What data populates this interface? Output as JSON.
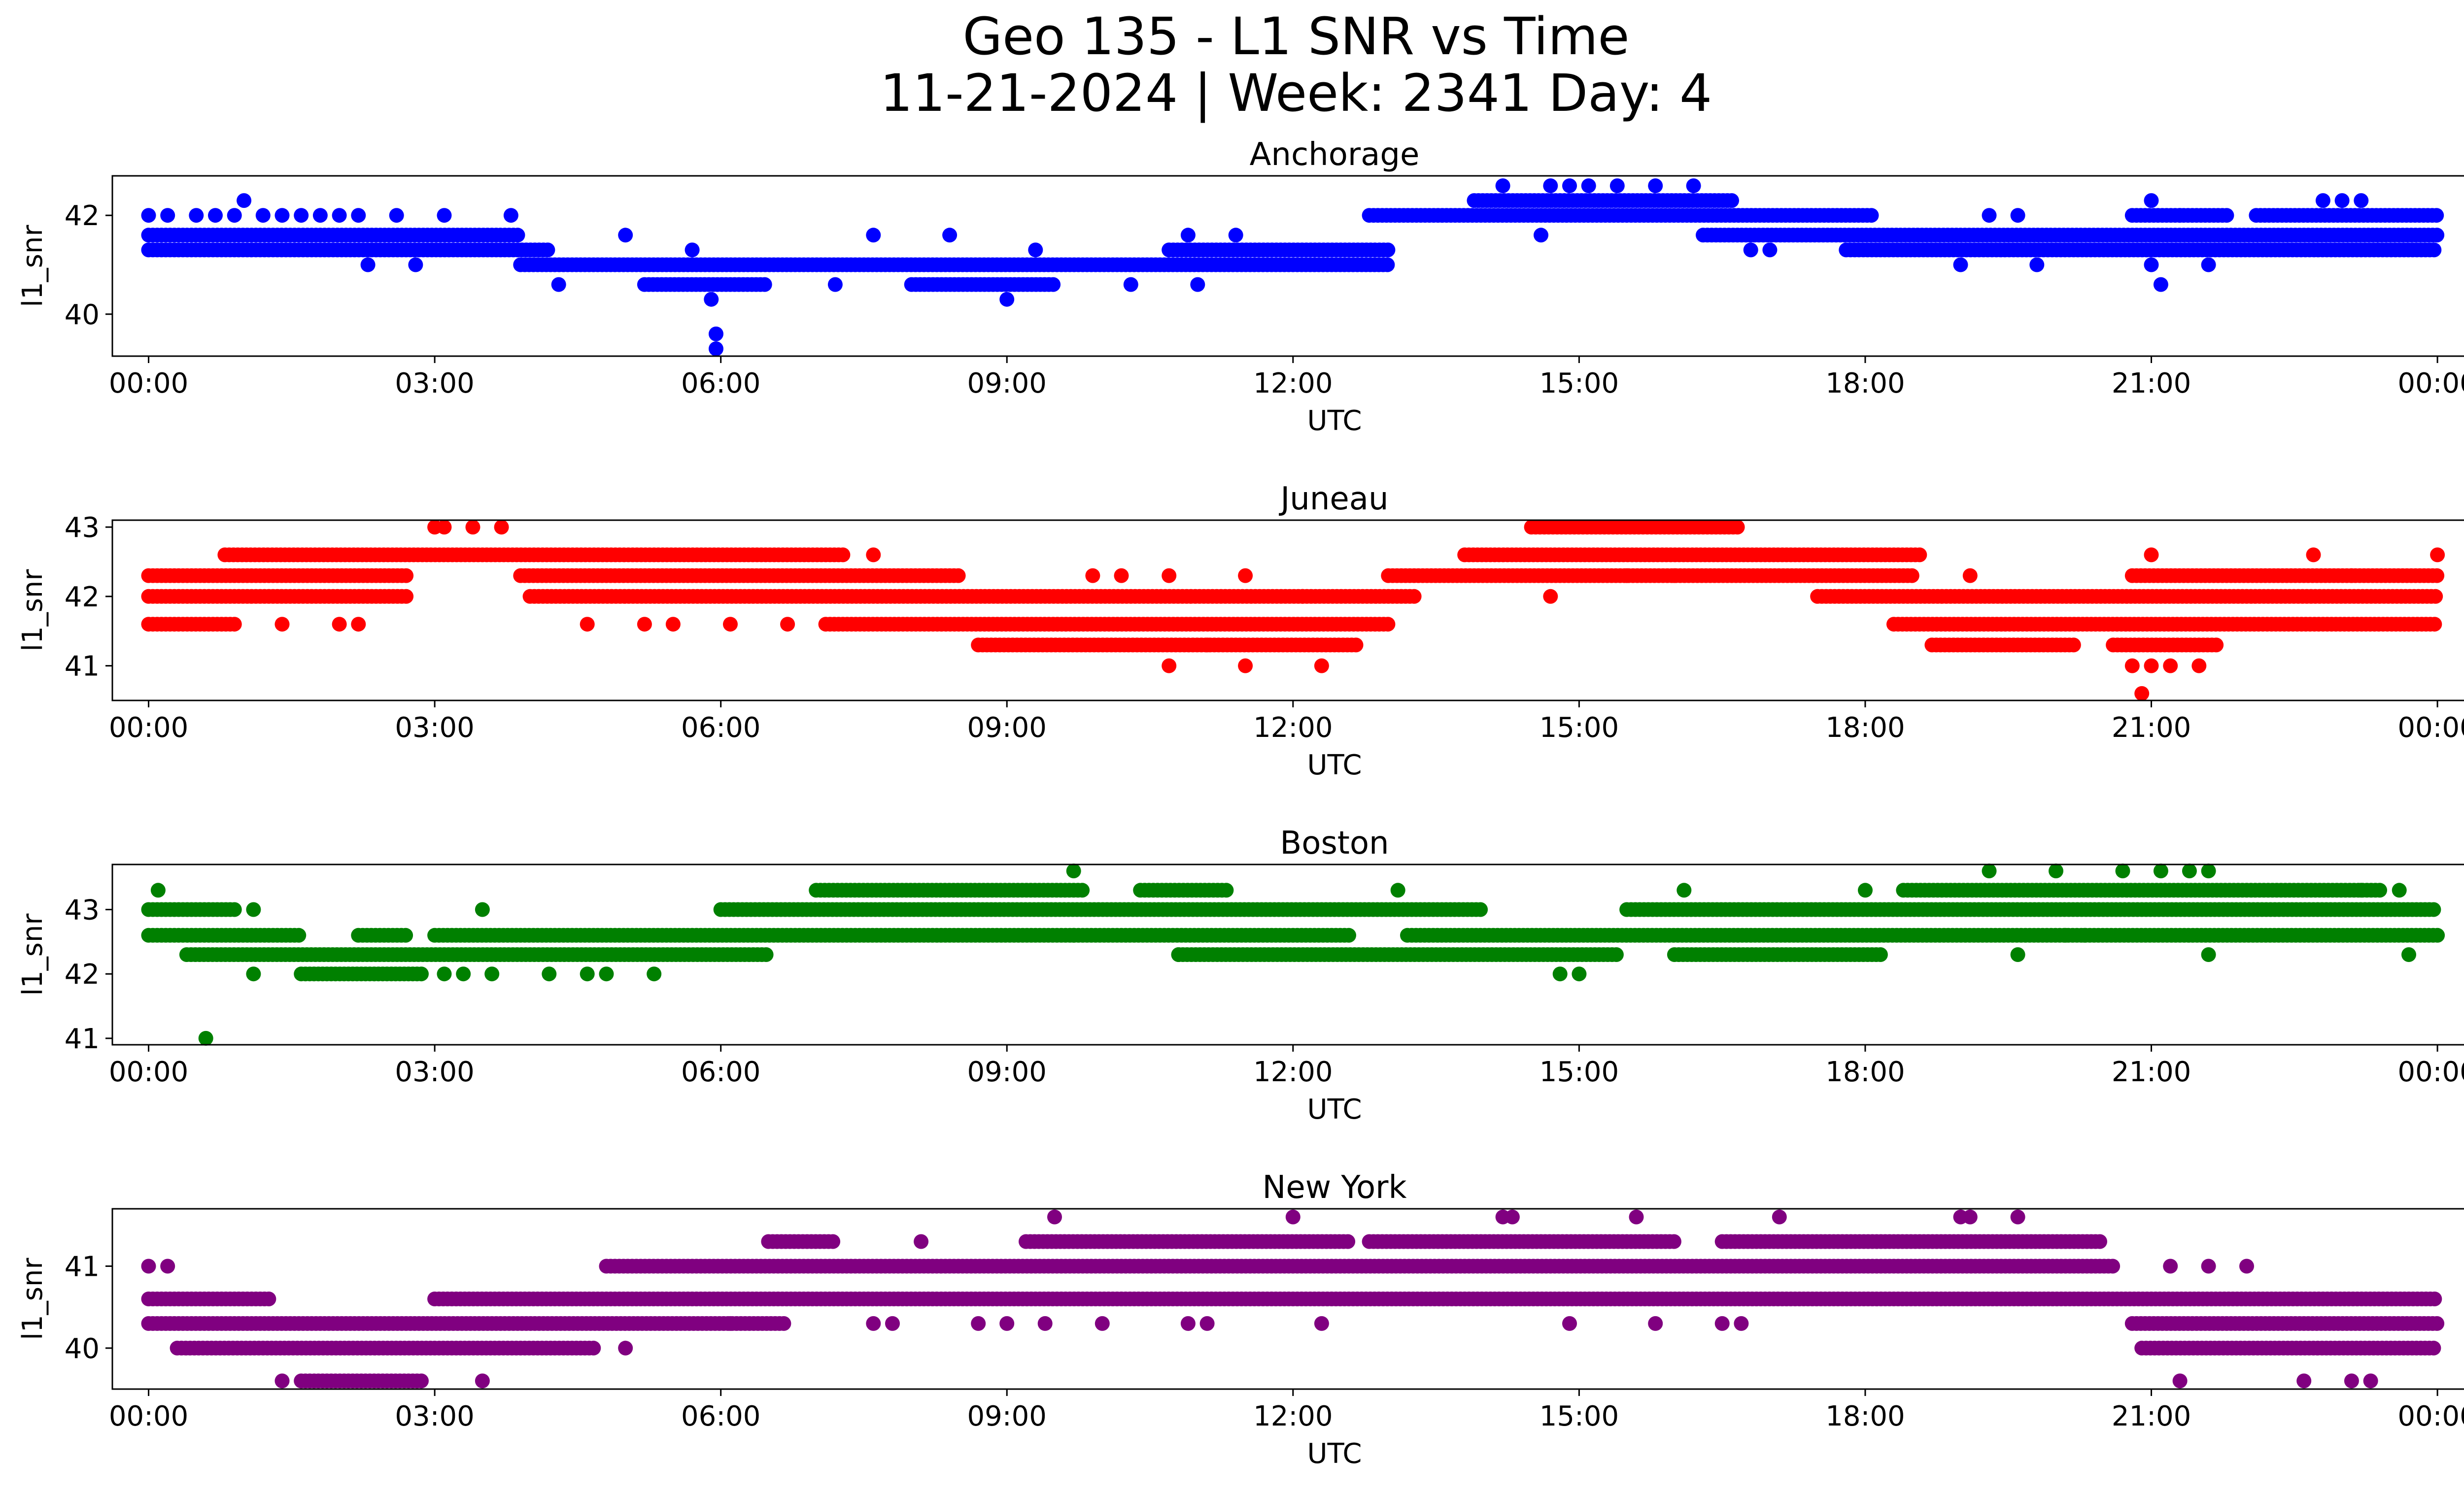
{
  "figure": {
    "title_line1": "Geo 135 - L1 SNR vs Time",
    "title_line2": "11-21-2024 | Week: 2341 Day: 4",
    "background": "#ffffff"
  },
  "chart_data": [
    {
      "type": "scatter",
      "title": "Anchorage",
      "xlabel": "UTC",
      "ylabel": "l1_snr",
      "color": "#0000ff",
      "xlim": [
        -0.38,
        25.25
      ],
      "ylim": [
        39.15,
        42.8
      ],
      "xticks": [
        0,
        3,
        6,
        9,
        12,
        15,
        18,
        21,
        24
      ],
      "xtick_labels": [
        "00:00",
        "03:00",
        "06:00",
        "09:00",
        "12:00",
        "15:00",
        "18:00",
        "21:00",
        "00:00"
      ],
      "yticks": [
        40,
        42
      ],
      "ytick_labels": [
        "40",
        "42"
      ],
      "bands": [
        {
          "y": 41.6,
          "x": [
            [
              0.0,
              3.9
            ],
            [
              16.3,
              24.0
            ]
          ]
        },
        {
          "y": 41.3,
          "x": [
            [
              0.0,
              4.2
            ],
            [
              10.7,
              13.0
            ],
            [
              17.8,
              24.0
            ]
          ]
        },
        {
          "y": 42.0,
          "x": [
            [
              12.8,
              18.1
            ],
            [
              20.8,
              21.8
            ],
            [
              22.1,
              24.0
            ]
          ]
        },
        {
          "y": 41.0,
          "x": [
            [
              3.9,
              13.0
            ]
          ]
        },
        {
          "y": 40.6,
          "x": [
            [
              5.2,
              6.5
            ],
            [
              8.0,
              9.5
            ]
          ]
        },
        {
          "y": 42.3,
          "x": [
            [
              13.9,
              16.6
            ]
          ]
        }
      ],
      "points": [
        {
          "x": 0.0,
          "y": 42.0
        },
        {
          "x": 0.2,
          "y": 42.0
        },
        {
          "x": 0.5,
          "y": 42.0
        },
        {
          "x": 0.7,
          "y": 42.0
        },
        {
          "x": 0.9,
          "y": 42.0
        },
        {
          "x": 1.0,
          "y": 42.3
        },
        {
          "x": 1.2,
          "y": 42.0
        },
        {
          "x": 1.4,
          "y": 42.0
        },
        {
          "x": 1.6,
          "y": 42.0
        },
        {
          "x": 1.8,
          "y": 42.0
        },
        {
          "x": 2.0,
          "y": 42.0
        },
        {
          "x": 2.2,
          "y": 42.0
        },
        {
          "x": 2.6,
          "y": 42.0
        },
        {
          "x": 2.3,
          "y": 41.0
        },
        {
          "x": 2.8,
          "y": 41.0
        },
        {
          "x": 3.1,
          "y": 42.0
        },
        {
          "x": 3.8,
          "y": 42.0
        },
        {
          "x": 4.3,
          "y": 40.6
        },
        {
          "x": 5.0,
          "y": 41.6
        },
        {
          "x": 5.7,
          "y": 41.3
        },
        {
          "x": 5.9,
          "y": 40.3
        },
        {
          "x": 5.95,
          "y": 39.6
        },
        {
          "x": 5.95,
          "y": 39.3
        },
        {
          "x": 7.2,
          "y": 40.6
        },
        {
          "x": 7.6,
          "y": 41.6
        },
        {
          "x": 8.4,
          "y": 41.6
        },
        {
          "x": 9.0,
          "y": 40.3
        },
        {
          "x": 9.3,
          "y": 41.3
        },
        {
          "x": 10.3,
          "y": 40.6
        },
        {
          "x": 10.9,
          "y": 41.6
        },
        {
          "x": 11.0,
          "y": 40.6
        },
        {
          "x": 11.4,
          "y": 41.6
        },
        {
          "x": 14.2,
          "y": 42.6
        },
        {
          "x": 14.7,
          "y": 42.6
        },
        {
          "x": 14.9,
          "y": 42.6
        },
        {
          "x": 15.1,
          "y": 42.6
        },
        {
          "x": 15.4,
          "y": 42.6
        },
        {
          "x": 15.8,
          "y": 42.6
        },
        {
          "x": 16.2,
          "y": 42.6
        },
        {
          "x": 14.6,
          "y": 41.6
        },
        {
          "x": 16.8,
          "y": 41.3
        },
        {
          "x": 17.0,
          "y": 41.3
        },
        {
          "x": 19.0,
          "y": 41.0
        },
        {
          "x": 19.3,
          "y": 42.0
        },
        {
          "x": 19.6,
          "y": 42.0
        },
        {
          "x": 19.8,
          "y": 41.0
        },
        {
          "x": 21.0,
          "y": 42.3
        },
        {
          "x": 21.0,
          "y": 41.0
        },
        {
          "x": 21.1,
          "y": 40.6
        },
        {
          "x": 21.3,
          "y": 42.0
        },
        {
          "x": 21.6,
          "y": 41.0
        },
        {
          "x": 22.8,
          "y": 42.3
        },
        {
          "x": 23.0,
          "y": 42.3
        },
        {
          "x": 23.2,
          "y": 42.3
        }
      ]
    },
    {
      "type": "scatter",
      "title": "Juneau",
      "xlabel": "UTC",
      "ylabel": "l1_snr",
      "color": "#ff0000",
      "xlim": [
        -0.38,
        25.25
      ],
      "ylim": [
        40.5,
        43.1
      ],
      "xticks": [
        0,
        3,
        6,
        9,
        12,
        15,
        18,
        21,
        24
      ],
      "xtick_labels": [
        "00:00",
        "03:00",
        "06:00",
        "09:00",
        "12:00",
        "15:00",
        "18:00",
        "21:00",
        "00:00"
      ],
      "yticks": [
        41,
        42,
        43
      ],
      "ytick_labels": [
        "41",
        "42",
        "43"
      ],
      "bands": [
        {
          "y": 42.3,
          "x": [
            [
              0.0,
              2.7
            ],
            [
              3.9,
              8.5
            ],
            [
              13.0,
              18.5
            ],
            [
              20.8,
              24.0
            ]
          ]
        },
        {
          "y": 42.0,
          "x": [
            [
              0.0,
              2.7
            ],
            [
              4.0,
              13.3
            ],
            [
              17.5,
              24.0
            ]
          ]
        },
        {
          "y": 41.6,
          "x": [
            [
              0.0,
              0.9
            ],
            [
              7.1,
              13.0
            ],
            [
              18.3,
              24.0
            ]
          ]
        },
        {
          "y": 42.6,
          "x": [
            [
              0.8,
              7.3
            ],
            [
              13.8,
              18.6
            ]
          ]
        },
        {
          "y": 41.3,
          "x": [
            [
              8.7,
              12.7
            ],
            [
              18.7,
              20.2
            ],
            [
              20.6,
              21.7
            ]
          ]
        },
        {
          "y": 43.0,
          "x": [
            [
              14.5,
              16.7
            ]
          ]
        }
      ],
      "points": [
        {
          "x": 1.4,
          "y": 41.6
        },
        {
          "x": 2.0,
          "y": 41.6
        },
        {
          "x": 2.2,
          "y": 41.6
        },
        {
          "x": 3.0,
          "y": 43.0
        },
        {
          "x": 3.1,
          "y": 43.0
        },
        {
          "x": 3.4,
          "y": 43.0
        },
        {
          "x": 3.7,
          "y": 43.0
        },
        {
          "x": 4.6,
          "y": 41.6
        },
        {
          "x": 5.2,
          "y": 41.6
        },
        {
          "x": 5.5,
          "y": 41.6
        },
        {
          "x": 6.1,
          "y": 41.6
        },
        {
          "x": 6.7,
          "y": 41.6
        },
        {
          "x": 7.6,
          "y": 42.6
        },
        {
          "x": 9.9,
          "y": 42.3
        },
        {
          "x": 10.2,
          "y": 42.3
        },
        {
          "x": 10.7,
          "y": 42.3
        },
        {
          "x": 10.7,
          "y": 41.0
        },
        {
          "x": 11.1,
          "y": 41.3
        },
        {
          "x": 11.5,
          "y": 42.3
        },
        {
          "x": 11.5,
          "y": 41.0
        },
        {
          "x": 12.1,
          "y": 42.0
        },
        {
          "x": 12.3,
          "y": 41.0
        },
        {
          "x": 14.7,
          "y": 42.0
        },
        {
          "x": 15.5,
          "y": 42.3
        },
        {
          "x": 16.0,
          "y": 42.3
        },
        {
          "x": 19.1,
          "y": 42.3
        },
        {
          "x": 20.8,
          "y": 41.0
        },
        {
          "x": 21.0,
          "y": 42.6
        },
        {
          "x": 21.0,
          "y": 41.0
        },
        {
          "x": 21.2,
          "y": 41.0
        },
        {
          "x": 21.5,
          "y": 41.0
        },
        {
          "x": 20.9,
          "y": 40.6
        },
        {
          "x": 22.7,
          "y": 42.6
        },
        {
          "x": 23.1,
          "y": 42.3
        },
        {
          "x": 24.0,
          "y": 42.6
        }
      ]
    },
    {
      "type": "scatter",
      "title": "Boston",
      "xlabel": "UTC",
      "ylabel": "l1_snr",
      "color": "#008000",
      "xlim": [
        -0.38,
        25.25
      ],
      "ylim": [
        40.9,
        43.7
      ],
      "xticks": [
        0,
        3,
        6,
        9,
        12,
        15,
        18,
        21,
        24
      ],
      "xtick_labels": [
        "00:00",
        "03:00",
        "06:00",
        "09:00",
        "12:00",
        "15:00",
        "18:00",
        "21:00",
        "00:00"
      ],
      "yticks": [
        41,
        42,
        43
      ],
      "ytick_labels": [
        "41",
        "42",
        "43"
      ],
      "bands": [
        {
          "y": 42.6,
          "x": [
            [
              0.0,
              1.6
            ],
            [
              2.2,
              2.7
            ],
            [
              3.0,
              12.6
            ],
            [
              13.2,
              24.0
            ]
          ]
        },
        {
          "y": 42.3,
          "x": [
            [
              0.4,
              6.5
            ],
            [
              10.8,
              15.4
            ],
            [
              16.0,
              18.2
            ]
          ]
        },
        {
          "y": 43.0,
          "x": [
            [
              0.0,
              0.9
            ],
            [
              6.0,
              14.0
            ],
            [
              15.5,
              24.0
            ]
          ]
        },
        {
          "y": 42.0,
          "x": [
            [
              1.6,
              2.9
            ]
          ]
        },
        {
          "y": 43.3,
          "x": [
            [
              7.0,
              9.8
            ],
            [
              10.4,
              11.3
            ],
            [
              18.4,
              23.4
            ]
          ]
        }
      ],
      "points": [
        {
          "x": 0.1,
          "y": 43.3
        },
        {
          "x": 0.6,
          "y": 41.0
        },
        {
          "x": 1.1,
          "y": 43.0
        },
        {
          "x": 1.1,
          "y": 42.0
        },
        {
          "x": 3.1,
          "y": 42.0
        },
        {
          "x": 3.3,
          "y": 42.0
        },
        {
          "x": 3.5,
          "y": 43.0
        },
        {
          "x": 3.6,
          "y": 42.0
        },
        {
          "x": 4.2,
          "y": 42.0
        },
        {
          "x": 4.6,
          "y": 42.0
        },
        {
          "x": 4.8,
          "y": 42.0
        },
        {
          "x": 5.3,
          "y": 42.0
        },
        {
          "x": 9.7,
          "y": 43.6
        },
        {
          "x": 9.7,
          "y": 42.6
        },
        {
          "x": 10.8,
          "y": 42.3
        },
        {
          "x": 13.1,
          "y": 43.3
        },
        {
          "x": 14.8,
          "y": 42.0
        },
        {
          "x": 15.0,
          "y": 42.0
        },
        {
          "x": 16.1,
          "y": 43.3
        },
        {
          "x": 18.0,
          "y": 43.3
        },
        {
          "x": 19.3,
          "y": 43.6
        },
        {
          "x": 19.6,
          "y": 42.3
        },
        {
          "x": 20.0,
          "y": 43.6
        },
        {
          "x": 20.1,
          "y": 42.6
        },
        {
          "x": 20.3,
          "y": 42.6
        },
        {
          "x": 20.7,
          "y": 43.6
        },
        {
          "x": 21.1,
          "y": 43.6
        },
        {
          "x": 21.4,
          "y": 43.6
        },
        {
          "x": 21.6,
          "y": 43.6
        },
        {
          "x": 21.6,
          "y": 42.3
        },
        {
          "x": 23.2,
          "y": 43.3
        },
        {
          "x": 23.7,
          "y": 42.3
        },
        {
          "x": 23.6,
          "y": 43.3
        }
      ]
    },
    {
      "type": "scatter",
      "title": "New York",
      "xlabel": "UTC",
      "ylabel": "l1_snr",
      "color": "#800080",
      "xlim": [
        -0.38,
        25.25
      ],
      "ylim": [
        39.5,
        41.7
      ],
      "xticks": [
        0,
        3,
        6,
        9,
        12,
        15,
        18,
        21,
        24
      ],
      "xtick_labels": [
        "00:00",
        "03:00",
        "06:00",
        "09:00",
        "12:00",
        "15:00",
        "18:00",
        "21:00",
        "00:00"
      ],
      "yticks": [
        40,
        41
      ],
      "ytick_labels": [
        "40",
        "41"
      ],
      "bands": [
        {
          "y": 40.6,
          "x": [
            [
              0.0,
              1.3
            ],
            [
              3.0,
              24.0
            ]
          ]
        },
        {
          "y": 40.3,
          "x": [
            [
              0.0,
              6.7
            ],
            [
              20.8,
              24.0
            ]
          ]
        },
        {
          "y": 40.0,
          "x": [
            [
              0.3,
              4.7
            ],
            [
              20.9,
              24.0
            ]
          ]
        },
        {
          "y": 41.0,
          "x": [
            [
              4.8,
              20.6
            ]
          ]
        },
        {
          "y": 41.3,
          "x": [
            [
              6.5,
              7.2
            ],
            [
              9.2,
              12.6
            ],
            [
              12.8,
              16.0
            ],
            [
              16.5,
              20.5
            ]
          ]
        },
        {
          "y": 39.6,
          "x": [
            [
              1.6,
              2.9
            ]
          ]
        }
      ],
      "points": [
        {
          "x": 0.0,
          "y": 41.0
        },
        {
          "x": 0.2,
          "y": 41.0
        },
        {
          "x": 1.4,
          "y": 39.6
        },
        {
          "x": 3.5,
          "y": 39.6
        },
        {
          "x": 5.0,
          "y": 40.0
        },
        {
          "x": 6.1,
          "y": 40.3
        },
        {
          "x": 7.6,
          "y": 40.3
        },
        {
          "x": 7.8,
          "y": 40.3
        },
        {
          "x": 8.1,
          "y": 41.3
        },
        {
          "x": 8.7,
          "y": 40.3
        },
        {
          "x": 9.0,
          "y": 40.3
        },
        {
          "x": 9.4,
          "y": 40.3
        },
        {
          "x": 9.5,
          "y": 41.6
        },
        {
          "x": 10.0,
          "y": 40.3
        },
        {
          "x": 10.9,
          "y": 40.3
        },
        {
          "x": 11.1,
          "y": 40.3
        },
        {
          "x": 12.0,
          "y": 41.6
        },
        {
          "x": 12.3,
          "y": 40.3
        },
        {
          "x": 14.2,
          "y": 41.6
        },
        {
          "x": 14.3,
          "y": 41.6
        },
        {
          "x": 14.9,
          "y": 40.3
        },
        {
          "x": 15.6,
          "y": 41.6
        },
        {
          "x": 15.8,
          "y": 40.3
        },
        {
          "x": 16.5,
          "y": 40.3
        },
        {
          "x": 16.7,
          "y": 40.3
        },
        {
          "x": 17.1,
          "y": 41.6
        },
        {
          "x": 19.0,
          "y": 41.6
        },
        {
          "x": 19.1,
          "y": 41.6
        },
        {
          "x": 19.6,
          "y": 41.6
        },
        {
          "x": 21.2,
          "y": 41.0
        },
        {
          "x": 21.6,
          "y": 41.0
        },
        {
          "x": 22.0,
          "y": 41.0
        },
        {
          "x": 21.3,
          "y": 39.6
        },
        {
          "x": 22.6,
          "y": 39.6
        },
        {
          "x": 23.1,
          "y": 39.6
        },
        {
          "x": 23.3,
          "y": 39.6
        }
      ]
    }
  ]
}
